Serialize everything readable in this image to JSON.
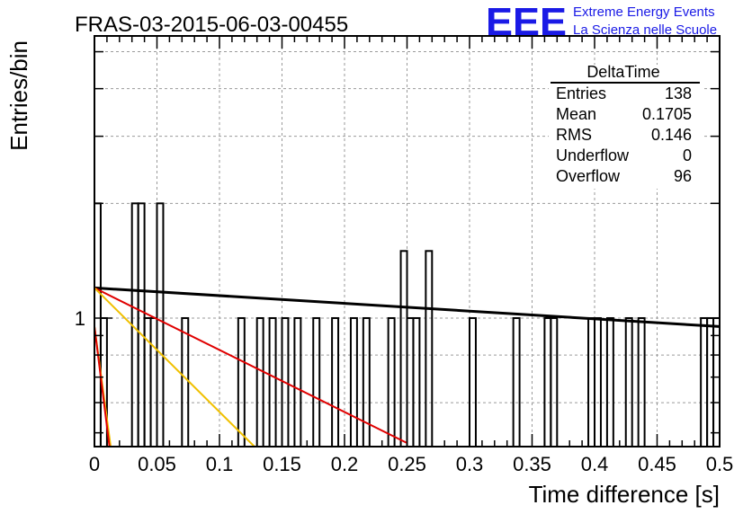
{
  "header": {
    "run_title": "FRAS-03-2015-06-03-00455",
    "logo_text": "EEE",
    "logo_line1": "Extreme Energy Events",
    "logo_line2": "La Scienza nelle Scuole",
    "logo_color": "#1a1ae6"
  },
  "stats": {
    "title": "DeltaTime",
    "rows": [
      {
        "label": "Entries",
        "value": "138"
      },
      {
        "label": "Mean",
        "value": "0.1705"
      },
      {
        "label": "RMS",
        "value": "0.146"
      },
      {
        "label": "Underflow",
        "value": "0"
      },
      {
        "label": "Overflow",
        "value": "96"
      }
    ]
  },
  "chart_data": {
    "type": "histogram",
    "xlabel": "Time difference [s]",
    "ylabel": "Entries/bin",
    "xlim": [
      0,
      0.5
    ],
    "ylim": [
      0.46,
      5.5
    ],
    "y_scale": "log",
    "grid": true,
    "x_ticks": [
      "0",
      "0.05",
      "0.1",
      "0.15",
      "0.2",
      "0.25",
      "0.3",
      "0.35",
      "0.4",
      "0.45",
      "0.5"
    ],
    "y_ticks": [
      "1"
    ],
    "bin_width": 0.005,
    "bins": [
      {
        "x": 0.0,
        "count": 2
      },
      {
        "x": 0.005,
        "count": 1
      },
      {
        "x": 0.03,
        "count": 2
      },
      {
        "x": 0.035,
        "count": 2
      },
      {
        "x": 0.04,
        "count": 1
      },
      {
        "x": 0.045,
        "count": 1
      },
      {
        "x": 0.05,
        "count": 2
      },
      {
        "x": 0.07,
        "count": 1
      },
      {
        "x": 0.115,
        "count": 1
      },
      {
        "x": 0.13,
        "count": 1
      },
      {
        "x": 0.14,
        "count": 1
      },
      {
        "x": 0.15,
        "count": 1
      },
      {
        "x": 0.16,
        "count": 1
      },
      {
        "x": 0.175,
        "count": 1
      },
      {
        "x": 0.19,
        "count": 1
      },
      {
        "x": 0.205,
        "count": 1
      },
      {
        "x": 0.215,
        "count": 1
      },
      {
        "x": 0.235,
        "count": 1
      },
      {
        "x": 0.245,
        "count": 1.5
      },
      {
        "x": 0.25,
        "count": 1
      },
      {
        "x": 0.255,
        "count": 1
      },
      {
        "x": 0.265,
        "count": 1.5
      },
      {
        "x": 0.3,
        "count": 1
      },
      {
        "x": 0.335,
        "count": 1
      },
      {
        "x": 0.36,
        "count": 1
      },
      {
        "x": 0.365,
        "count": 1
      },
      {
        "x": 0.395,
        "count": 1
      },
      {
        "x": 0.4,
        "count": 1
      },
      {
        "x": 0.41,
        "count": 1
      },
      {
        "x": 0.425,
        "count": 1
      },
      {
        "x": 0.435,
        "count": 1
      },
      {
        "x": 0.485,
        "count": 1
      },
      {
        "x": 0.49,
        "count": 1
      },
      {
        "x": 0.495,
        "count": 1
      }
    ],
    "fit_lines": [
      {
        "color": "#000000",
        "points": [
          [
            0,
            1.2
          ],
          [
            0.5,
            0.95
          ]
        ]
      },
      {
        "color": "#e00000",
        "points": [
          [
            0,
            1.2
          ],
          [
            0.25,
            0.47
          ]
        ]
      },
      {
        "color": "#f0c000",
        "points": [
          [
            0,
            1.2
          ],
          [
            0.128,
            0.46
          ]
        ]
      },
      {
        "color": "#f0c000",
        "points": [
          [
            0,
            0.95
          ],
          [
            0.013,
            0.46
          ]
        ]
      },
      {
        "color": "#e00000",
        "points": [
          [
            0,
            0.95
          ],
          [
            0.012,
            0.46
          ]
        ]
      }
    ]
  }
}
